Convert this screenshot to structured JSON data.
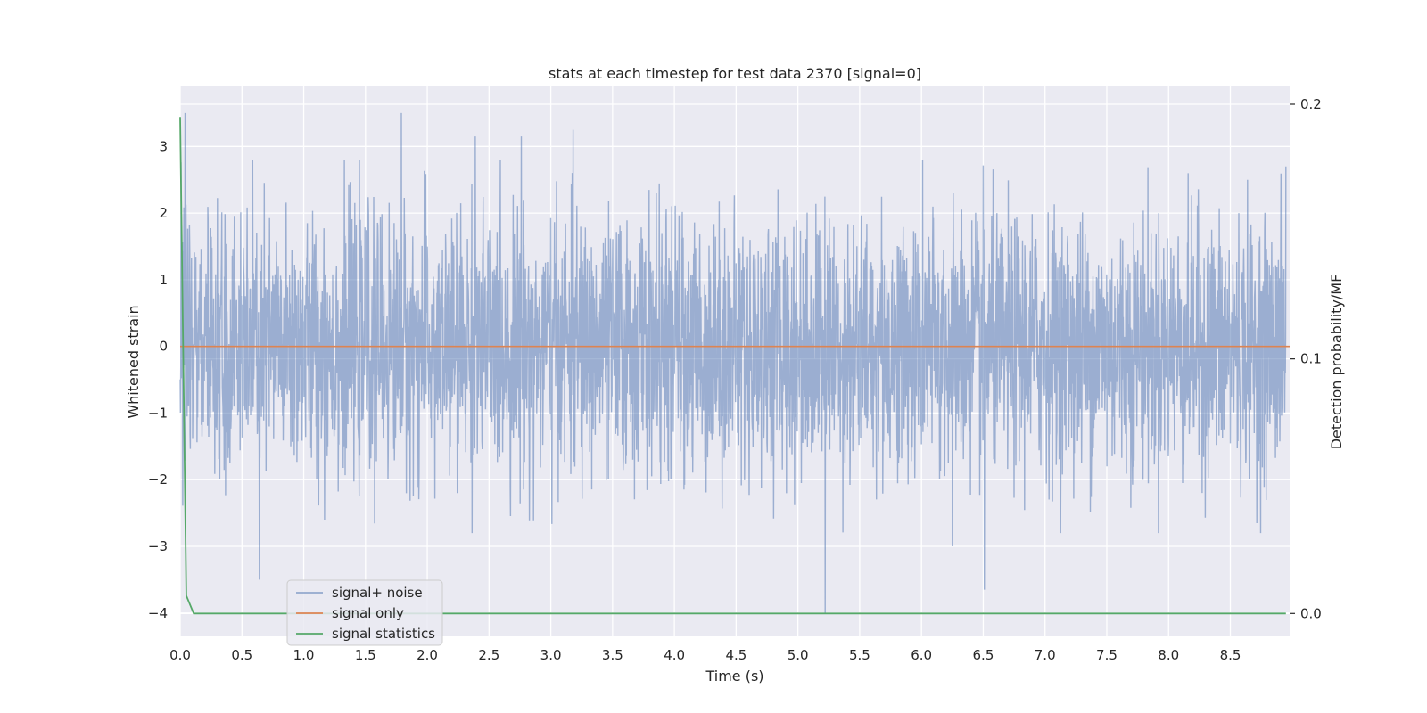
{
  "chart_data": {
    "type": "line",
    "title": "stats at each timestep for test data 2370 [signal=0]",
    "xlabel": "Time (s)",
    "ylabel": "Whitened strain",
    "y2label": "Detection probability/MF",
    "xlim": [
      0,
      8.98
    ],
    "ylim": [
      -4.35,
      3.9
    ],
    "y2lim": [
      -0.009,
      0.207
    ],
    "xticks": [
      "0.0",
      "0.5",
      "1.0",
      "1.5",
      "2.0",
      "2.5",
      "3.0",
      "3.5",
      "4.0",
      "4.5",
      "5.0",
      "5.5",
      "6.0",
      "6.5",
      "7.0",
      "7.5",
      "8.0",
      "8.5"
    ],
    "yticks": [
      "3",
      "2",
      "1",
      "0",
      "−1",
      "−2",
      "−3",
      "−4"
    ],
    "y2ticks": [
      "0.2",
      "0.1",
      "0.0"
    ],
    "grid": true,
    "legend_position": "lower left",
    "series": [
      {
        "name": "signal+ noise",
        "axis": "left",
        "color": "#4c72b0",
        "description": "whitened noise, approx. standard normal, spanning 0.0–8.98 s",
        "noise_std": 0.95,
        "notable_peaks": [
          {
            "x": 0.04,
            "y": 3.5
          },
          {
            "x": 1.79,
            "y": 3.5
          },
          {
            "x": 2.39,
            "y": 3.15
          },
          {
            "x": 2.76,
            "y": 3.15
          },
          {
            "x": 3.18,
            "y": 3.25
          },
          {
            "x": 0.64,
            "y": -3.5
          },
          {
            "x": 5.22,
            "y": -4.0
          },
          {
            "x": 6.25,
            "y": -3.0
          },
          {
            "x": 6.51,
            "y": -3.65
          },
          {
            "x": 8.95,
            "y": 2.7
          }
        ]
      },
      {
        "name": "signal only",
        "axis": "left",
        "color": "#dd8452",
        "x": [
          0.0,
          8.98
        ],
        "y": [
          0,
          0
        ]
      },
      {
        "name": "signal statistics",
        "axis": "right",
        "color": "#55a868",
        "x": [
          0.0,
          0.05,
          0.11,
          8.95
        ],
        "y": [
          0.195,
          0.007,
          0.0,
          0.0
        ]
      }
    ]
  }
}
